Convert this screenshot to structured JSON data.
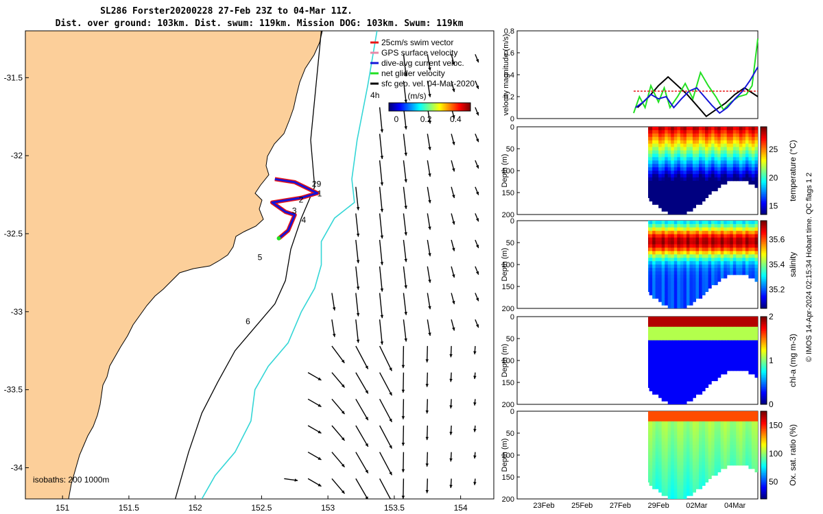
{
  "header": {
    "title_line1": "SL286 Forster20200228 27-Feb 23Z to 04-Mar 11Z.",
    "title_line2": "Dist. over ground: 103km. Dist. swum: 119km. Mission DOG: 103km. Swum: 119km"
  },
  "side_note": "© IMOS 14-Apr-2024 02:15:34 Hobart time. QC flags 1  2",
  "colors": {
    "land": "#fccf9a",
    "track_blue": "#1414d8",
    "track_red": "#e81414",
    "isobath_cyan": "#33d6d6"
  },
  "chart_data": [
    {
      "type": "map",
      "x_ticks": [
        "151",
        "151.5",
        "152",
        "152.5",
        "153",
        "153.5",
        "154"
      ],
      "x_tick_values": [
        151,
        151.5,
        152,
        152.5,
        153,
        153.5,
        154
      ],
      "y_ticks": [
        "-31.5",
        "-32",
        "-32.5",
        "-33",
        "-33.5",
        "-34"
      ],
      "y_tick_values": [
        -31.5,
        -32,
        -32.5,
        -33,
        -33.5,
        -34
      ],
      "xlim": [
        150.72,
        154.25
      ],
      "ylim": [
        -34.2,
        -31.2
      ],
      "legend": {
        "entries": [
          "25cm/s swim vector",
          "GPS surface velocity",
          "dive-avg current veloc.",
          "net glider velocity",
          "sfc geo. vel. 04-Mar-2020"
        ],
        "colors": [
          "#e81414",
          "#e888a8",
          "#1414d8",
          "#22e022",
          "#000000"
        ]
      },
      "colorbar": {
        "label": "(m/s)",
        "ticks": [
          "0",
          "0.2",
          "0.4"
        ],
        "tick_values": [
          0,
          0.2,
          0.4
        ],
        "range": [
          -0.05,
          0.5
        ]
      },
      "isobath_label": "isobaths: 200  1000m",
      "annotations": [
        {
          "text": "29",
          "lon": 152.88,
          "lat": -32.2
        },
        {
          "text": "1",
          "lon": 152.92,
          "lat": -32.26
        },
        {
          "text": "2",
          "lon": 152.78,
          "lat": -32.3
        },
        {
          "text": "3",
          "lon": 152.73,
          "lat": -32.37
        },
        {
          "text": "4",
          "lon": 152.8,
          "lat": -32.43
        },
        {
          "text": "5",
          "lon": 152.47,
          "lat": -32.67
        },
        {
          "text": "6",
          "lon": 152.38,
          "lat": -33.08
        },
        {
          "text": "4h",
          "lon": 153.32,
          "lat": -31.63
        }
      ],
      "track": [
        [
          152.6,
          -32.15
        ],
        [
          152.75,
          -32.17
        ],
        [
          152.92,
          -32.24
        ],
        [
          152.8,
          -32.27
        ],
        [
          152.58,
          -32.3
        ],
        [
          152.68,
          -32.36
        ],
        [
          152.75,
          -32.38
        ],
        [
          152.7,
          -32.48
        ],
        [
          152.63,
          -32.53
        ]
      ],
      "isobath_200": [
        [
          152.95,
          -31.2
        ],
        [
          152.87,
          -31.9
        ],
        [
          152.9,
          -32.2
        ],
        [
          152.8,
          -32.4
        ],
        [
          152.72,
          -32.6
        ],
        [
          152.68,
          -32.8
        ],
        [
          152.6,
          -32.95
        ],
        [
          152.45,
          -33.1
        ],
        [
          152.3,
          -33.25
        ],
        [
          152.17,
          -33.45
        ],
        [
          152.05,
          -33.65
        ],
        [
          151.95,
          -33.9
        ],
        [
          151.85,
          -34.2
        ]
      ],
      "isobath_1000": [
        [
          153.37,
          -31.2
        ],
        [
          153.3,
          -31.55
        ],
        [
          153.22,
          -31.9
        ],
        [
          153.18,
          -32.15
        ],
        [
          153.2,
          -32.3
        ],
        [
          153.05,
          -32.4
        ],
        [
          152.95,
          -32.55
        ],
        [
          152.95,
          -32.7
        ],
        [
          152.9,
          -32.85
        ],
        [
          152.8,
          -33.0
        ],
        [
          152.7,
          -33.2
        ],
        [
          152.55,
          -33.35
        ],
        [
          152.45,
          -33.5
        ],
        [
          152.42,
          -33.7
        ],
        [
          152.3,
          -33.9
        ],
        [
          152.15,
          -34.05
        ],
        [
          152.05,
          -34.2
        ]
      ]
    },
    {
      "type": "line",
      "ylabel": "velocity magnitude (m/s)",
      "ylim": [
        0,
        0.8
      ],
      "y_ticks": [
        "0",
        "0.2",
        "0.4",
        "0.6",
        "0.8"
      ],
      "y_tick_values": [
        0,
        0.2,
        0.4,
        0.6,
        0.8
      ],
      "series": [
        {
          "color": "#000000",
          "x": [
            27.9,
            28.5,
            29.0,
            29.5,
            30.0,
            30.5,
            31.0,
            31.5,
            32.0,
            32.5,
            33.0,
            33.5,
            34.2
          ],
          "values": [
            0.1,
            0.2,
            0.3,
            0.38,
            0.3,
            0.22,
            0.12,
            0.02,
            0.08,
            0.14,
            0.22,
            0.28,
            0.2
          ]
        },
        {
          "color": "#22e022",
          "x": [
            27.7,
            28.0,
            28.3,
            28.6,
            29.0,
            29.3,
            29.6,
            30.0,
            30.4,
            30.8,
            31.2,
            31.6,
            32.0,
            32.4,
            32.8,
            33.2,
            33.6,
            33.9,
            34.2
          ],
          "values": [
            0.05,
            0.2,
            0.1,
            0.3,
            0.15,
            0.28,
            0.1,
            0.2,
            0.32,
            0.18,
            0.42,
            0.3,
            0.2,
            0.08,
            0.15,
            0.2,
            0.22,
            0.3,
            0.73
          ]
        },
        {
          "color": "#1414d8",
          "x": [
            27.8,
            28.2,
            28.6,
            29.0,
            29.4,
            29.8,
            30.2,
            30.6,
            31.0,
            31.4,
            31.8,
            32.2,
            32.6,
            33.0,
            33.4,
            33.8,
            34.2
          ],
          "values": [
            0.1,
            0.15,
            0.22,
            0.18,
            0.2,
            0.1,
            0.18,
            0.25,
            0.28,
            0.2,
            0.12,
            0.05,
            0.1,
            0.18,
            0.25,
            0.35,
            0.47
          ]
        },
        {
          "color": "#e81414",
          "x": [
            27.7,
            34.2
          ],
          "values": [
            0.25,
            0.25
          ]
        }
      ]
    },
    {
      "type": "heatmap",
      "variable": "temperature",
      "ylabel": "Depth (m)",
      "cbar_label": "temperature (°C)",
      "ylim": [
        0,
        200
      ],
      "y_ticks": [
        "0",
        "50",
        "100",
        "150",
        "200"
      ],
      "y_tick_values": [
        0,
        50,
        100,
        150,
        200
      ],
      "cbar_range": [
        13.5,
        29
      ],
      "cbar_ticks": [
        "15",
        "20",
        "25"
      ],
      "cbar_tick_values": [
        15,
        20,
        25
      ],
      "colormap": "jet"
    },
    {
      "type": "heatmap",
      "variable": "salinity",
      "ylabel": "Depth (m)",
      "cbar_label": "salinity",
      "ylim": [
        0,
        200
      ],
      "y_ticks": [
        "0",
        "50",
        "100",
        "150",
        "200"
      ],
      "y_tick_values": [
        0,
        50,
        100,
        150,
        200
      ],
      "cbar_range": [
        35.05,
        35.75
      ],
      "cbar_ticks": [
        "35.2",
        "35.4",
        "35.6"
      ],
      "cbar_tick_values": [
        35.2,
        35.4,
        35.6
      ],
      "colormap": "jet"
    },
    {
      "type": "heatmap",
      "variable": "chl-a",
      "ylabel": "Depth (m)",
      "cbar_label": "chl-a (mg m-3)",
      "ylim": [
        0,
        200
      ],
      "y_ticks": [
        "0",
        "50",
        "100",
        "150",
        "200"
      ],
      "y_tick_values": [
        0,
        50,
        100,
        150,
        200
      ],
      "cbar_range": [
        0,
        2
      ],
      "cbar_ticks": [
        "0",
        "1",
        "2"
      ],
      "cbar_tick_values": [
        0,
        1,
        2
      ],
      "colormap": "jet"
    },
    {
      "type": "heatmap",
      "variable": "oxygen saturation",
      "ylabel": "Depth (m)",
      "cbar_label": "Ox. sat. ratio (%)",
      "ylim": [
        0,
        200
      ],
      "y_ticks": [
        "0",
        "50",
        "100",
        "150",
        "200"
      ],
      "y_tick_values": [
        0,
        50,
        100,
        150,
        200
      ],
      "cbar_range": [
        20,
        175
      ],
      "cbar_ticks": [
        "50",
        "100",
        "150"
      ],
      "cbar_tick_values": [
        50,
        100,
        150
      ],
      "colormap": "jet"
    }
  ],
  "time_axis": {
    "x_ticks": [
      "23Feb",
      "25Feb",
      "27Feb",
      "29Feb",
      "02Mar",
      "04Mar"
    ],
    "x_tick_values": [
      23,
      25,
      27,
      29,
      31,
      33
    ],
    "xlim": [
      21.6,
      34.2
    ],
    "data_start": 27.7,
    "data_end": 34.2
  }
}
